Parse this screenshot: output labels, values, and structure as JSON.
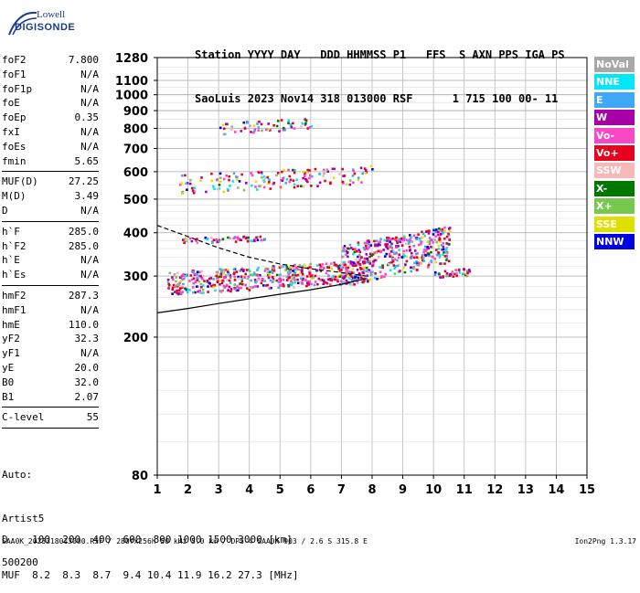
{
  "logo": {
    "line1": "Lowell",
    "line2": "DIGISONDE"
  },
  "header": {
    "labels": "Station YYYY DAY   DDD HHMMSS P1   FFS  S AXN PPS IGA PS",
    "values": "SaoLuis 2023 Nov14 318 013000 RSF      1 715 100 00- 11"
  },
  "params": [
    {
      "group": [
        {
          "name": "foF2",
          "value": "7.800"
        },
        {
          "name": "foF1",
          "value": "N/A"
        },
        {
          "name": "foF1p",
          "value": "N/A"
        },
        {
          "name": "foE",
          "value": "N/A"
        },
        {
          "name": "foEp",
          "value": "0.35"
        },
        {
          "name": "fxI",
          "value": "N/A"
        },
        {
          "name": "foEs",
          "value": "N/A"
        },
        {
          "name": "fmin",
          "value": "5.65"
        }
      ]
    },
    {
      "group": [
        {
          "name": "MUF(D)",
          "value": "27.25"
        },
        {
          "name": "M(D)",
          "value": "3.49"
        },
        {
          "name": "D",
          "value": "N/A"
        }
      ]
    },
    {
      "group": [
        {
          "name": "h`F",
          "value": "285.0"
        },
        {
          "name": "h`F2",
          "value": "285.0"
        },
        {
          "name": "h`E",
          "value": "N/A"
        },
        {
          "name": "h`Es",
          "value": "N/A"
        }
      ]
    },
    {
      "group": [
        {
          "name": "hmF2",
          "value": "287.3"
        },
        {
          "name": "hmF1",
          "value": "N/A"
        },
        {
          "name": "hmE",
          "value": "110.0"
        },
        {
          "name": "yF2",
          "value": "32.3"
        },
        {
          "name": "yF1",
          "value": "N/A"
        },
        {
          "name": "yE",
          "value": "20.0"
        },
        {
          "name": "B0",
          "value": "32.0"
        },
        {
          "name": "B1",
          "value": "2.07"
        }
      ]
    },
    {
      "group": [
        {
          "name": "C-level",
          "value": "55"
        }
      ]
    }
  ],
  "auto": {
    "line1": "Auto:",
    "line2": "Artist5",
    "line3": "500200"
  },
  "legend": [
    {
      "label": "NoVal",
      "bg": "#a8a8a8",
      "fg": "#ffffff"
    },
    {
      "label": "NNE",
      "bg": "#00e8f8",
      "fg": "#ffffff"
    },
    {
      "label": "E",
      "bg": "#40a8f8",
      "fg": "#ffffff"
    },
    {
      "label": "W",
      "bg": "#a800a8",
      "fg": "#ffffff"
    },
    {
      "label": "Vo-",
      "bg": "#f848c8",
      "fg": "#ffffff"
    },
    {
      "label": "Vo+",
      "bg": "#e8001c",
      "fg": "#ffffff"
    },
    {
      "label": "SSW",
      "bg": "#f8b8b8",
      "fg": "#ffffff"
    },
    {
      "label": "X-",
      "bg": "#007800",
      "fg": "#ffffff"
    },
    {
      "label": "X+",
      "bg": "#78c850",
      "fg": "#ffffff"
    },
    {
      "label": "SSE",
      "bg": "#e0e000",
      "fg": "#ffffff"
    },
    {
      "label": "NNW",
      "bg": "#0000e0",
      "fg": "#ffffff"
    }
  ],
  "dmuf": {
    "d_row": "D    100  200  400  600  800 1000 1500 3000 [km]",
    "muf_row": "MUF  8.2  8.3  8.7  9.4 10.4 11.9 16.2 27.3 [MHz]"
  },
  "footer": "SAA0K_2023318013000.RSF / 280fx256h 50 kHz 5.0 km / DPS-4 SAA0K 903 / 2.6 S 315.8 E",
  "version": "Ion2Png 1.3.17",
  "chart_data": {
    "type": "scatter",
    "xlim": [
      1,
      15
    ],
    "ylim": [
      80,
      1280
    ],
    "x_ticks": [
      1,
      2,
      3,
      4,
      5,
      6,
      7,
      8,
      9,
      10,
      11,
      12,
      13,
      14,
      15
    ],
    "y_ticks": [
      80,
      200,
      300,
      400,
      500,
      600,
      700,
      800,
      900,
      1000,
      1100,
      1280
    ],
    "grid": true,
    "y_scale": "log",
    "traces": [
      {
        "name": "F2 O-trace band",
        "x_range": [
          1.3,
          7.9
        ],
        "h_range": [
          265,
          335
        ],
        "density": 520
      },
      {
        "name": "F2 spread",
        "x_range": [
          7.0,
          10.5
        ],
        "h_range": [
          280,
          420
        ],
        "density": 420
      },
      {
        "name": "F2 tail",
        "x_range": [
          10.0,
          11.2
        ],
        "h_range": [
          295,
          320
        ],
        "density": 40
      },
      {
        "name": "second hop",
        "x_range": [
          1.7,
          8.0
        ],
        "h_range": [
          520,
          630
        ],
        "density": 160
      },
      {
        "name": "third hop",
        "x_range": [
          3.0,
          6.1
        ],
        "h_range": [
          770,
          865
        ],
        "density": 60
      },
      {
        "name": "oblique",
        "x_range": [
          1.8,
          4.5
        ],
        "h_range": [
          375,
          395
        ],
        "density": 60
      }
    ],
    "profile_curve": {
      "x": [
        1.0,
        2.0,
        3.0,
        4.0,
        5.0,
        6.0,
        7.0,
        7.8
      ],
      "h": [
        235,
        242,
        250,
        258,
        266,
        274,
        284,
        295
      ]
    },
    "dashed_curve": {
      "x": [
        1.0,
        2.0,
        3.0,
        4.0,
        5.0,
        6.0,
        7.0,
        7.8
      ],
      "h": [
        420,
        390,
        362,
        340,
        325,
        315,
        307,
        300
      ]
    }
  }
}
